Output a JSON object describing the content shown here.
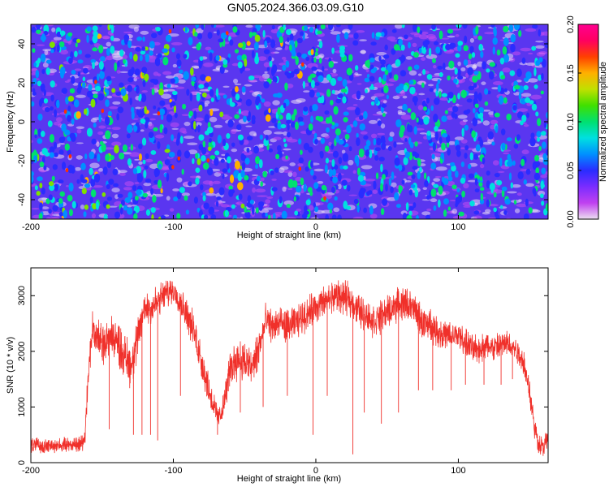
{
  "title": "GN05.2024.366.03.09.G10",
  "spectrogram": {
    "type": "heatmap",
    "xlabel": "Height of straight line (km)",
    "ylabel": "Frequency (Hz)",
    "xlim": [
      -200,
      163
    ],
    "ylim": [
      -50,
      50
    ],
    "xticks": [
      "-200",
      "-100",
      "0",
      "100"
    ],
    "yticks": [
      "-40",
      "-20",
      "0",
      "20",
      "40"
    ],
    "colorbar": {
      "label": "Normalized spectral amplitude",
      "range": [
        0,
        0.2
      ],
      "ticks": [
        "0.00",
        "0.05",
        "0.10",
        "0.15",
        "0.20"
      ],
      "colors": [
        "#ece0f0",
        "#c040f0",
        "#7a2cff",
        "#2a2cff",
        "#0090ff",
        "#00e0e0",
        "#00e070",
        "#40e000",
        "#c0e000",
        "#ffb000",
        "#ff4000",
        "#ff0060",
        "#ff0090"
      ]
    }
  },
  "chart_data": {
    "type": "line",
    "xlabel": "Height of straight line (km)",
    "ylabel": "SNR (10 * v/v)",
    "xlim": [
      -200,
      163
    ],
    "ylim": [
      0,
      3500
    ],
    "xticks": [
      "-200",
      "-100",
      "0",
      "100"
    ],
    "yticks": [
      "0",
      "1000",
      "2000",
      "3000"
    ],
    "line_color": "#f0302a",
    "envelope": {
      "x": [
        -200,
        -190,
        -180,
        -170,
        -165,
        -162,
        -160,
        -157,
        -153,
        -150,
        -145,
        -140,
        -135,
        -130,
        -125,
        -120,
        -115,
        -110,
        -105,
        -100,
        -95,
        -90,
        -85,
        -80,
        -75,
        -70,
        -68,
        -65,
        -60,
        -55,
        -50,
        -45,
        -40,
        -35,
        -30,
        -25,
        -20,
        -15,
        -10,
        -5,
        0,
        5,
        10,
        15,
        20,
        25,
        30,
        35,
        40,
        45,
        50,
        55,
        60,
        65,
        70,
        75,
        80,
        85,
        90,
        95,
        100,
        105,
        110,
        115,
        120,
        125,
        130,
        135,
        140,
        143,
        146,
        150,
        153,
        156,
        160,
        163
      ],
      "mean": [
        320,
        300,
        310,
        330,
        340,
        500,
        1500,
        2350,
        2250,
        2150,
        2250,
        2200,
        1950,
        1750,
        2200,
        2800,
        2800,
        2900,
        3050,
        3100,
        2900,
        2650,
        2300,
        1800,
        1300,
        900,
        800,
        1000,
        1700,
        1900,
        1800,
        1700,
        2050,
        2550,
        2450,
        2500,
        2450,
        2500,
        2600,
        2700,
        2800,
        2850,
        2950,
        3000,
        2950,
        2900,
        2750,
        2650,
        2550,
        2600,
        2700,
        2800,
        2850,
        2850,
        2700,
        2500,
        2500,
        2350,
        2300,
        2250,
        2300,
        2150,
        2050,
        2050,
        2100,
        2050,
        2100,
        2150,
        2050,
        1950,
        1800,
        1300,
        700,
        350,
        300,
        450
      ],
      "noise": [
        170,
        150,
        150,
        160,
        170,
        250,
        350,
        450,
        450,
        450,
        450,
        450,
        500,
        500,
        450,
        400,
        400,
        350,
        300,
        280,
        300,
        350,
        400,
        400,
        350,
        250,
        250,
        250,
        400,
        450,
        450,
        450,
        450,
        350,
        350,
        350,
        350,
        350,
        350,
        350,
        350,
        350,
        350,
        350,
        350,
        350,
        350,
        350,
        350,
        350,
        350,
        350,
        350,
        350,
        350,
        350,
        330,
        330,
        320,
        320,
        300,
        300,
        300,
        300,
        300,
        300,
        300,
        280,
        280,
        280,
        280,
        300,
        250,
        200,
        200,
        250
      ]
    },
    "dropouts": [
      {
        "x": -145,
        "y": 600
      },
      {
        "x": -128,
        "y": 500
      },
      {
        "x": -122,
        "y": 500
      },
      {
        "x": -116,
        "y": 500
      },
      {
        "x": -111,
        "y": 400
      },
      {
        "x": -95,
        "y": 1200
      },
      {
        "x": -69,
        "y": 500
      },
      {
        "x": -53,
        "y": 900
      },
      {
        "x": -37,
        "y": 1000
      },
      {
        "x": -20,
        "y": 1200
      },
      {
        "x": -2,
        "y": 500
      },
      {
        "x": 8,
        "y": 1200
      },
      {
        "x": 26,
        "y": 150
      },
      {
        "x": 34,
        "y": 900
      },
      {
        "x": 46,
        "y": 700
      },
      {
        "x": 58,
        "y": 900
      },
      {
        "x": 72,
        "y": 1300
      },
      {
        "x": 82,
        "y": 1300
      },
      {
        "x": 95,
        "y": 1300
      },
      {
        "x": 105,
        "y": 1400
      },
      {
        "x": 118,
        "y": 1400
      },
      {
        "x": 130,
        "y": 1400
      },
      {
        "x": 138,
        "y": 1500
      }
    ]
  }
}
